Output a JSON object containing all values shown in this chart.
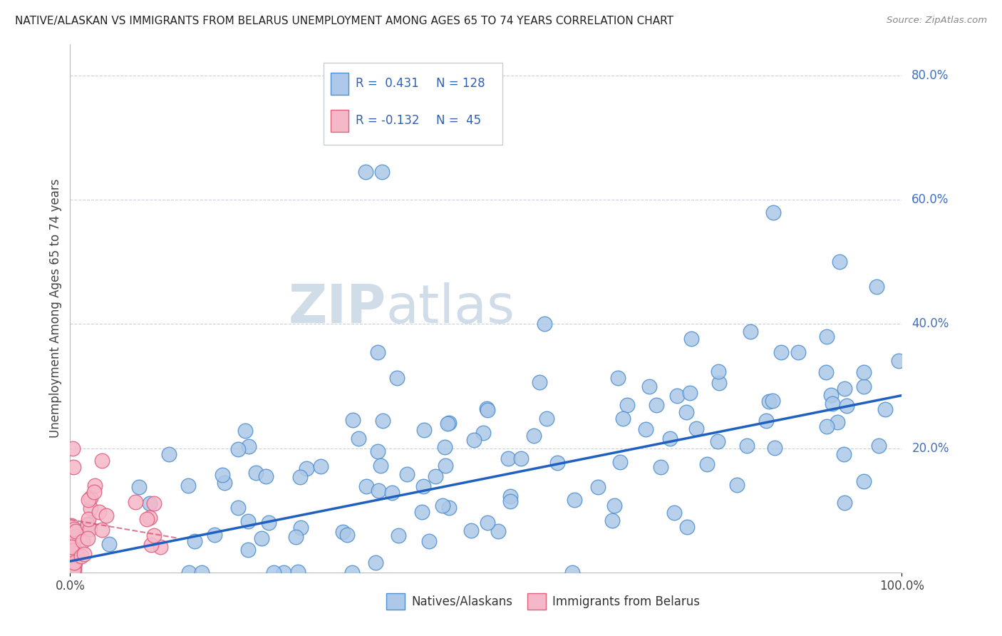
{
  "title": "NATIVE/ALASKAN VS IMMIGRANTS FROM BELARUS UNEMPLOYMENT AMONG AGES 65 TO 74 YEARS CORRELATION CHART",
  "source": "Source: ZipAtlas.com",
  "ylabel": "Unemployment Among Ages 65 to 74 years",
  "xlim": [
    0,
    1.0
  ],
  "ylim": [
    0,
    0.85
  ],
  "blue_color": "#adc8e8",
  "blue_edge_color": "#5090d0",
  "pink_color": "#f5b8c8",
  "pink_edge_color": "#e06080",
  "line_color": "#2060c0",
  "pink_line_color": "#d05070",
  "background_color": "#ffffff",
  "grid_color": "#c8d0e0",
  "watermark_color": "#d0dce8",
  "right_label_color": "#4070c0",
  "bottom_label_color": "#444444",
  "legend_text_color": "#3060b0",
  "blue_trend_start_y": 0.018,
  "blue_trend_end_y": 0.285,
  "pink_trend_start_y": 0.085,
  "pink_trend_end_y": 0.055,
  "pink_trend_end_x": 0.13
}
